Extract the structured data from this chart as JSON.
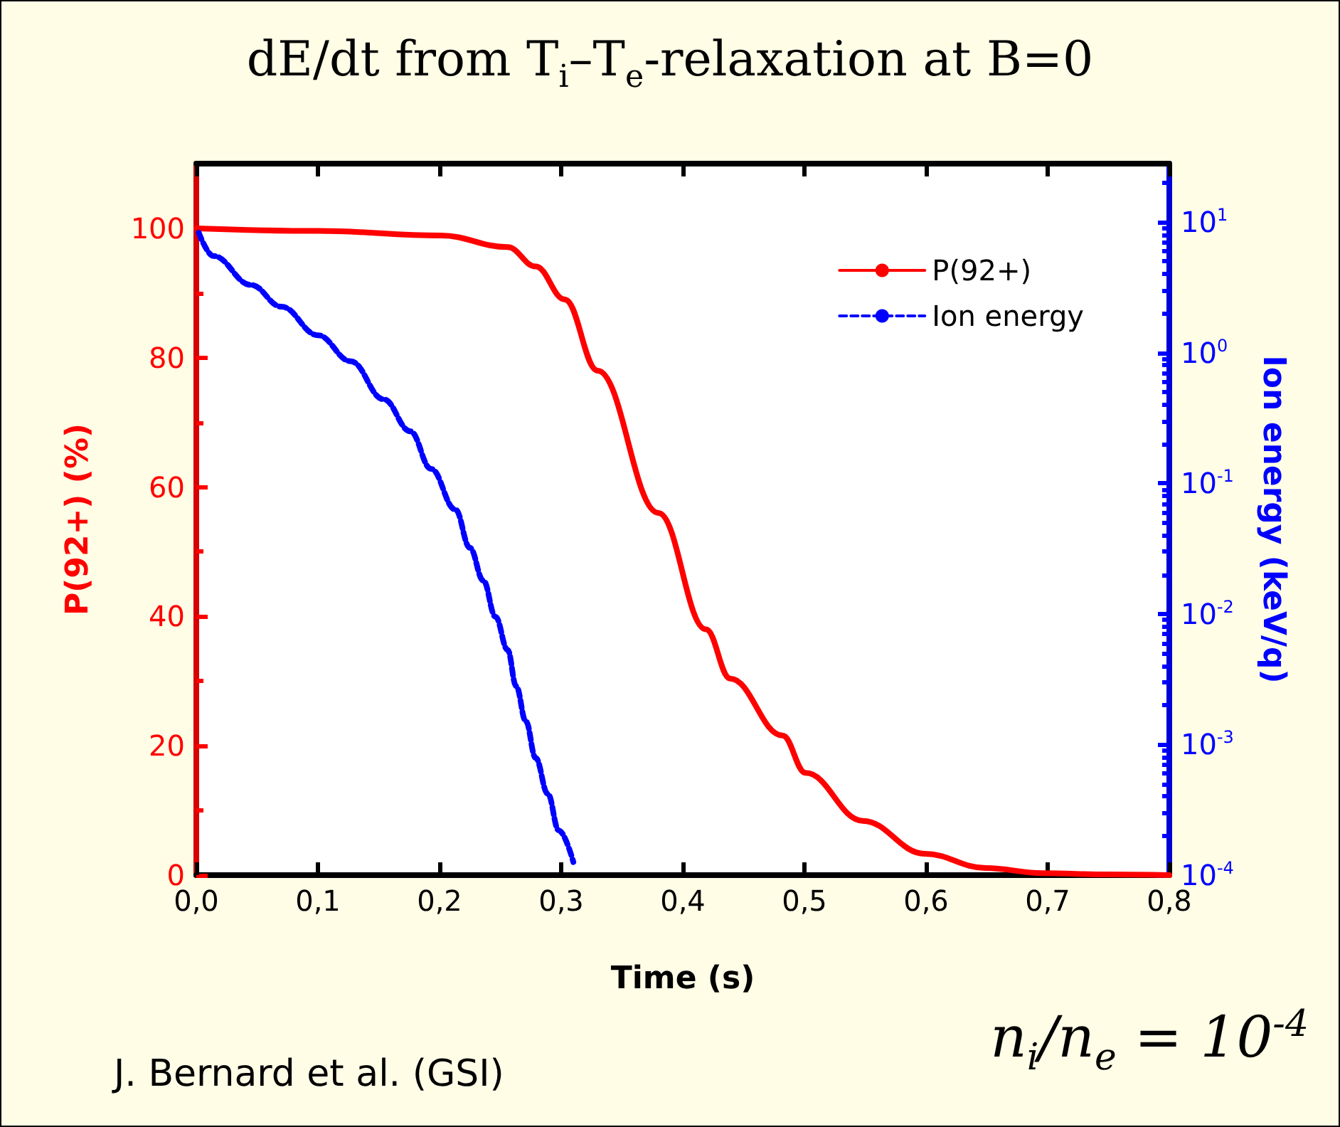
{
  "chart_data": {
    "type": "line",
    "title": "dE/dt from T$_{i}$–T$_{e}$-relaxation at B=0",
    "xlabel": "Time (s)",
    "ylabel": "P(92+) (%)",
    "y2label": "Ion energy (keV/q)",
    "annotations": [
      "J. Bernard et al. (GSI)",
      "n$_{i}$/n$_{e}$ = 10$^{-4}$"
    ],
    "series": [
      {
        "name": "P(92+)",
        "color": "#ff0000",
        "line_style": "solid",
        "x": [
          0,
          0.1,
          0.201,
          0.256,
          0.279,
          0.303,
          0.33,
          0.38,
          0.419,
          0.439,
          0.482,
          0.501,
          0.548,
          0.599,
          0.649,
          0.696,
          0.75,
          0.8
        ],
        "values": [
          100,
          99.6,
          98.9,
          97.1,
          94.1,
          89,
          78,
          56,
          38,
          30.4,
          21.6,
          15.8,
          8.4,
          3.3,
          1.1,
          0.3,
          0.1,
          0
        ]
      },
      {
        "name": "Ion energy",
        "color": "#0000ff",
        "line_style": "dashed",
        "axis": "y2",
        "x": [
          0.002,
          0.014,
          0.045,
          0.07,
          0.1,
          0.127,
          0.154,
          0.176,
          0.193,
          0.213,
          0.225,
          0.236,
          0.246,
          0.256,
          0.263,
          0.271,
          0.279,
          0.289,
          0.298,
          0.31
        ],
        "values": [
          8.3,
          5.5,
          3.3,
          2.25,
          1.36,
          0.86,
          0.44,
          0.25,
          0.129,
          0.063,
          0.032,
          0.018,
          0.0095,
          0.0053,
          0.0028,
          0.0015,
          0.00079,
          0.00042,
          0.00022,
          0.000126
        ]
      }
    ],
    "xlim": [
      0,
      0.8
    ],
    "xticks": [
      {
        "value": 0,
        "label": "0,0"
      },
      {
        "value": 0.1,
        "label": "0,1"
      },
      {
        "value": 0.2,
        "label": "0,2"
      },
      {
        "value": 0.3,
        "label": "0,3"
      },
      {
        "value": 0.4,
        "label": "0,4"
      },
      {
        "value": 0.5,
        "label": "0,5"
      },
      {
        "value": 0.6,
        "label": "0,6"
      },
      {
        "value": 0.7,
        "label": "0,7"
      },
      {
        "value": 0.8,
        "label": "0,8"
      }
    ],
    "ylim": [
      0,
      110
    ],
    "yticks": [
      0,
      20,
      40,
      60,
      80,
      100
    ],
    "y2lim": [
      0.0001,
      28
    ],
    "y2ticks": [
      {
        "value": 0.0001,
        "label": "10$^{-4}$"
      },
      {
        "value": 0.001,
        "label": "10$^{-3}$"
      },
      {
        "value": 0.01,
        "label": "10$^{-2}$"
      },
      {
        "value": 0.1,
        "label": "10$^{-1}$"
      },
      {
        "value": 1,
        "label": "10$^{0}$"
      },
      {
        "value": 10,
        "label": "10$^{1}$"
      }
    ],
    "log": "y2",
    "grid": false,
    "legend": "top right",
    "marker": "none"
  }
}
